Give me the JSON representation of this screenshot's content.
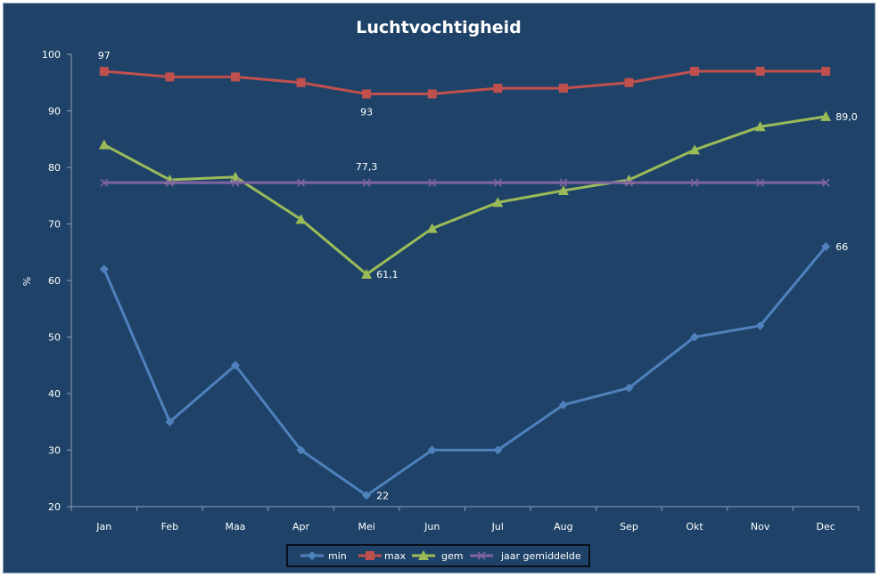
{
  "chart_data": {
    "type": "line",
    "title": "Luchtvochtigheid",
    "ylabel": "%",
    "xlabel": "",
    "ylim": [
      20,
      100
    ],
    "yticks": [
      20,
      30,
      40,
      50,
      60,
      70,
      80,
      90,
      100
    ],
    "categories": [
      "Jan",
      "Feb",
      "Maa",
      "Apr",
      "Mei",
      "Jun",
      "Jul",
      "Aug",
      "Sep",
      "Okt",
      "Nov",
      "Dec"
    ],
    "grid": false,
    "legend_position": "bottom",
    "series": [
      {
        "name": "min",
        "color": "#4f81bd",
        "marker": "diamond",
        "values": [
          62,
          35,
          45,
          30,
          22,
          30,
          30,
          38,
          41,
          50,
          52,
          66
        ]
      },
      {
        "name": "max",
        "color": "#c0504d",
        "marker": "square",
        "values": [
          97,
          96,
          96,
          95,
          93,
          93,
          94,
          94,
          95,
          97,
          97,
          97
        ]
      },
      {
        "name": "gem",
        "color": "#9bbb59",
        "marker": "triangle",
        "values": [
          84,
          77.8,
          78.3,
          70.8,
          61.1,
          69.2,
          73.8,
          75.9,
          77.8,
          83.1,
          87.2,
          89.0
        ]
      },
      {
        "name": "jaar gemiddelde",
        "color": "#8064a2",
        "marker": "x",
        "values": [
          77.3,
          77.3,
          77.3,
          77.3,
          77.3,
          77.3,
          77.3,
          77.3,
          77.3,
          77.3,
          77.3,
          77.3
        ]
      }
    ],
    "annotations": [
      {
        "series": "max",
        "index": 0,
        "text": "97",
        "pos": "above"
      },
      {
        "series": "max",
        "index": 4,
        "text": "93",
        "pos": "below"
      },
      {
        "series": "jaar gemiddelde",
        "index": 4,
        "text": "77,3",
        "pos": "above"
      },
      {
        "series": "gem",
        "index": 4,
        "text": "61,1",
        "pos": "right"
      },
      {
        "series": "gem",
        "index": 11,
        "text": "89,0",
        "pos": "right"
      },
      {
        "series": "min",
        "index": 4,
        "text": "22",
        "pos": "right"
      },
      {
        "series": "min",
        "index": 11,
        "text": "66",
        "pos": "right"
      }
    ]
  }
}
